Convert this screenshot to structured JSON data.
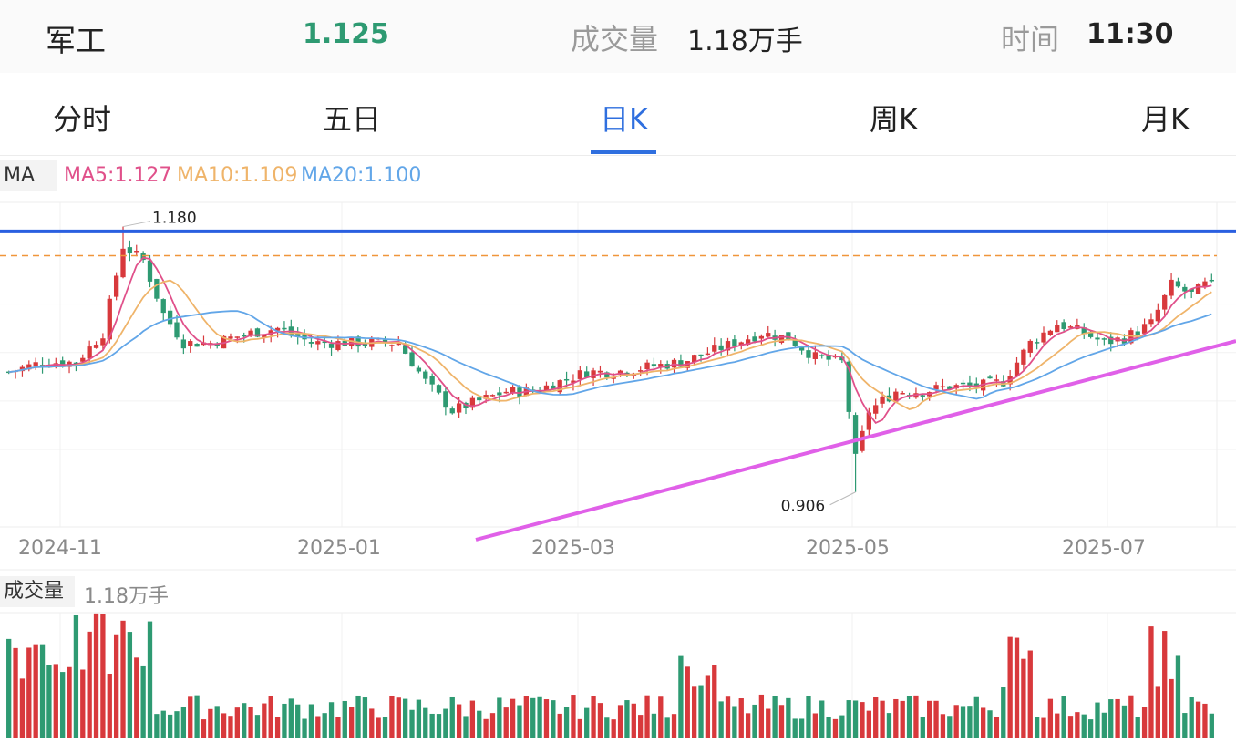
{
  "header": {
    "name": "军工",
    "price": "1.125",
    "volume_label": "成交量",
    "volume_value": "1.18万手",
    "time_label": "时间",
    "time_value": "11:30"
  },
  "tabs": [
    {
      "label": "分时",
      "active": false
    },
    {
      "label": "五日",
      "active": false
    },
    {
      "label": "日K",
      "active": true
    },
    {
      "label": "周K",
      "active": false
    },
    {
      "label": "月K",
      "active": false
    }
  ],
  "ma_legend": {
    "tag": "MA",
    "ma5": "MA5:1.127",
    "ma10": "MA10:1.109",
    "ma20": "MA20:1.100"
  },
  "volume_legend": {
    "tag": "成交量",
    "value": "1.18万手"
  },
  "colors": {
    "up": "#d8393c",
    "down": "#2e9a72",
    "accent": "#2f6fdf",
    "ma5": "#e0508a",
    "ma10": "#efb46a",
    "ma20": "#62a6e8",
    "resistance_line": "#2a5fe0",
    "support_trendline": "#e060e8",
    "dashed_level": "#f0963a"
  },
  "chart_data": {
    "type": "candlestick",
    "x_tick_labels": [
      "2024-11",
      "2025-01",
      "2025-03",
      "2025-05",
      "2025-07"
    ],
    "high_label": "1.180",
    "low_label": "0.906",
    "price_range": [
      0.87,
      1.205
    ],
    "resistance_level": 1.175,
    "dashed_level": 1.15,
    "support_trendline": {
      "start_date": "2025-02-01",
      "start_value": 0.88,
      "end_date": "2025-07-30",
      "end_value": 1.075
    },
    "last": {
      "close": 1.125,
      "ma5": 1.127,
      "ma10": 1.109,
      "ma20": 1.1
    }
  }
}
